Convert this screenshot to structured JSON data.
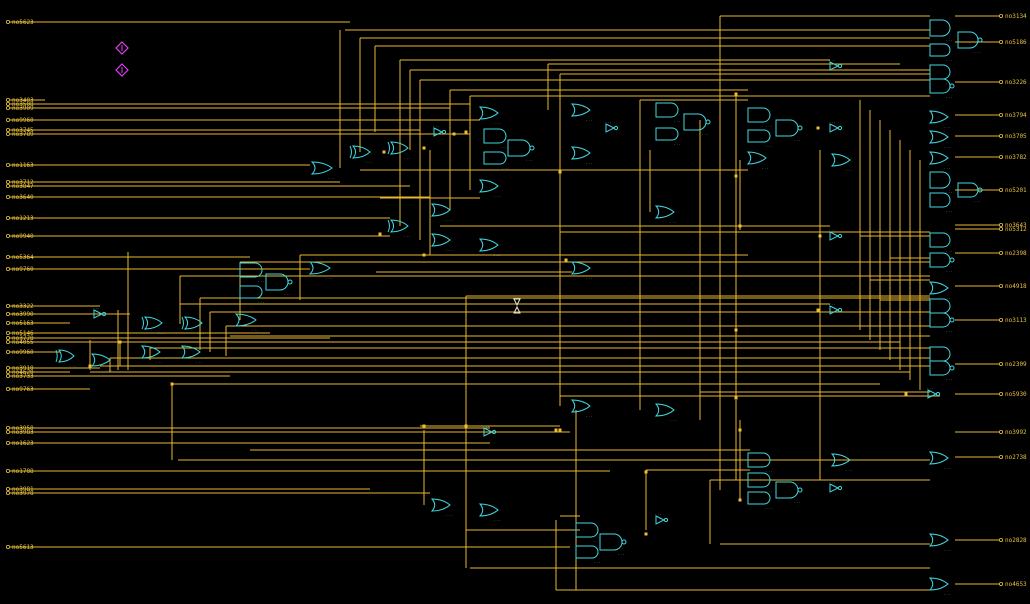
{
  "colors": {
    "background": "#000000",
    "wire": "#e8b830",
    "junction": "#f0c030",
    "gate": "#40d8e0",
    "marker": "#e040f0",
    "port_label": "#e8c240"
  },
  "icons": [
    "marker-up-icon",
    "marker-down-icon",
    "crosshair-icon"
  ],
  "inputs": [
    {
      "name": "no5623"
    },
    {
      "name": "no3403"
    },
    {
      "name": "no3508"
    },
    {
      "name": "no3909"
    },
    {
      "name": "no9960"
    },
    {
      "name": "no3745"
    },
    {
      "name": "no3789"
    },
    {
      "name": "no1163"
    },
    {
      "name": "no3712"
    },
    {
      "name": "no3847"
    },
    {
      "name": "no3640"
    },
    {
      "name": "no1213"
    },
    {
      "name": "no9940"
    },
    {
      "name": "no5364"
    },
    {
      "name": "no9760"
    },
    {
      "name": "no3322"
    },
    {
      "name": "no3990"
    },
    {
      "name": "no5163"
    },
    {
      "name": "no5146"
    },
    {
      "name": "no3770"
    },
    {
      "name": "no4055"
    },
    {
      "name": "no9960"
    },
    {
      "name": "no3910"
    },
    {
      "name": "no4620"
    },
    {
      "name": "no3733"
    },
    {
      "name": "no9763"
    },
    {
      "name": "no3950"
    },
    {
      "name": "no3983"
    },
    {
      "name": "no1623"
    },
    {
      "name": "no1788"
    },
    {
      "name": "no3981"
    },
    {
      "name": "no3978"
    },
    {
      "name": "no5613"
    }
  ],
  "outputs": [
    {
      "name": "no3134"
    },
    {
      "name": "no5186"
    },
    {
      "name": "no3226"
    },
    {
      "name": "no3794"
    },
    {
      "name": "no3705"
    },
    {
      "name": "no3782"
    },
    {
      "name": "no5201"
    },
    {
      "name": "no3643"
    },
    {
      "name": "no5312"
    },
    {
      "name": "no2398"
    },
    {
      "name": "no4918"
    },
    {
      "name": "no3113"
    },
    {
      "name": "no2309"
    },
    {
      "name": "no5930"
    },
    {
      "name": "no3992"
    },
    {
      "name": "no2738"
    },
    {
      "name": "no2828"
    },
    {
      "name": "no4653"
    }
  ]
}
